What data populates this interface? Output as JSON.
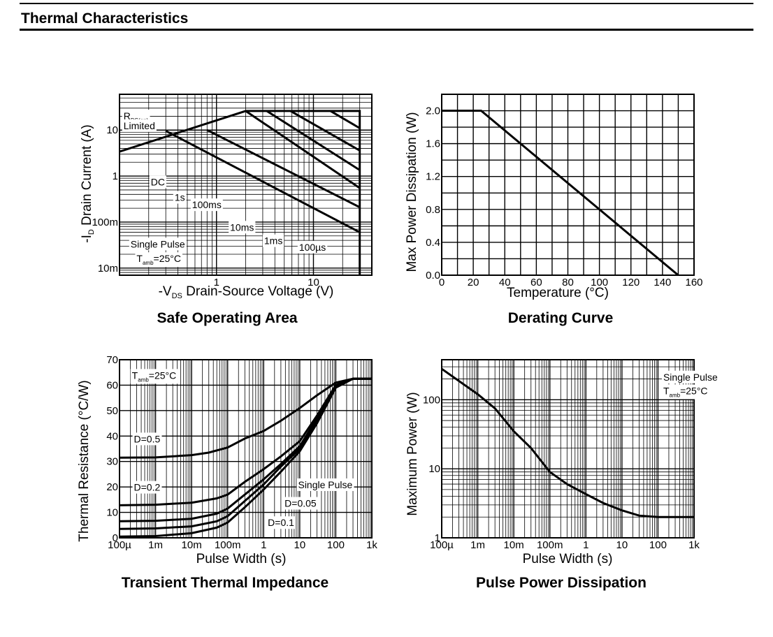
{
  "section_title": "Thermal Characteristics",
  "chart_data": [
    {
      "id": "soa",
      "type": "line",
      "title": "Safe Operating Area",
      "xlabel": "-V",
      "xlabel_sub": "DS",
      "xlabel_rest": "Drain-Source Voltage (V)",
      "ylabel": "-I",
      "ylabel_sub": "D",
      "ylabel_rest": "Drain Current (A)",
      "xscale": "log",
      "yscale": "log",
      "xlim": [
        0.1,
        40
      ],
      "ylim": [
        0.007,
        60
      ],
      "grid": true,
      "xticks": [
        {
          "v": 1,
          "label": "1"
        },
        {
          "v": 10,
          "label": "10"
        }
      ],
      "yticks": [
        {
          "v": 0.01,
          "label": "10m"
        },
        {
          "v": 0.1,
          "label": "100m"
        },
        {
          "v": 1,
          "label": "1"
        },
        {
          "v": 10,
          "label": "10"
        }
      ],
      "series": [
        {
          "name": "",
          "values": [
            [
              0.1,
              3.4
            ],
            [
              2,
              26
            ],
            [
              30,
              26
            ],
            [
              30,
              0.007
            ]
          ]
        },
        {
          "name": "",
          "values": [
            [
              0.3,
              9.6
            ],
            [
              30,
              0.06
            ]
          ]
        },
        {
          "name": "",
          "values": [
            [
              0.8,
              10
            ],
            [
              30,
              0.21
            ]
          ]
        },
        {
          "name": "",
          "values": [
            [
              2,
              26
            ],
            [
              30,
              0.55
            ]
          ]
        },
        {
          "name": "",
          "values": [
            [
              3.3,
              26
            ],
            [
              30,
              1.35
            ]
          ]
        },
        {
          "name": "",
          "values": [
            [
              5.8,
              26
            ],
            [
              30,
              3.6
            ]
          ]
        },
        {
          "name": "",
          "values": [
            [
              15,
              26
            ],
            [
              30,
              11
            ]
          ]
        }
      ],
      "annotations": [
        {
          "text": "R",
          "sub": "DS(on)",
          "x": 0.11,
          "y": 17
        },
        {
          "text": "Limited",
          "x": 0.11,
          "y": 10.5
        },
        {
          "text": "DC",
          "x": 0.21,
          "y": 0.63
        },
        {
          "text": "1s",
          "x": 0.37,
          "y": 0.29
        },
        {
          "text": "100ms",
          "x": 0.56,
          "y": 0.2
        },
        {
          "text": "10ms",
          "x": 1.38,
          "y": 0.065
        },
        {
          "text": "1ms",
          "x": 3.1,
          "y": 0.033
        },
        {
          "text": "100µs",
          "x": 7.1,
          "y": 0.024
        },
        {
          "text": "Single Pulse",
          "x": 0.13,
          "y": 0.028
        },
        {
          "text": "T",
          "sub": "amb",
          "rest": "=25°C",
          "x": 0.15,
          "y": 0.0135
        }
      ]
    },
    {
      "id": "derating",
      "type": "line",
      "title": "Derating Curve",
      "xlabel": "Temperature (°C)",
      "ylabel": "Max Power Dissipation (W)",
      "xlim": [
        0,
        160
      ],
      "ylim": [
        0,
        2.2
      ],
      "grid": true,
      "xticks": [
        {
          "v": 0,
          "label": "0"
        },
        {
          "v": 20,
          "label": "20"
        },
        {
          "v": 40,
          "label": "40"
        },
        {
          "v": 60,
          "label": "60"
        },
        {
          "v": 80,
          "label": "80"
        },
        {
          "v": 100,
          "label": "100"
        },
        {
          "v": 120,
          "label": "120"
        },
        {
          "v": 140,
          "label": "140"
        },
        {
          "v": 160,
          "label": "160"
        }
      ],
      "yticks": [
        {
          "v": 0,
          "label": "0.0"
        },
        {
          "v": 0.4,
          "label": "0.4"
        },
        {
          "v": 0.8,
          "label": "0.8"
        },
        {
          "v": 1.2,
          "label": "1.2"
        },
        {
          "v": 1.6,
          "label": "1.6"
        },
        {
          "v": 2.0,
          "label": "2.0"
        }
      ],
      "series": [
        {
          "name": "",
          "values": [
            [
              0,
              2.0
            ],
            [
              25,
              2.0
            ],
            [
              150,
              0.0
            ]
          ]
        }
      ]
    },
    {
      "id": "zth",
      "type": "line",
      "title": "Transient Thermal Impedance",
      "xlabel": "Pulse Width (s)",
      "ylabel": "Thermal Resistance (°C/W)",
      "xscale": "log",
      "xlim": [
        0.0001,
        1000
      ],
      "ylim": [
        0,
        70
      ],
      "grid": true,
      "xticks": [
        {
          "v": 0.0001,
          "label": "100µ"
        },
        {
          "v": 0.001,
          "label": "1m"
        },
        {
          "v": 0.01,
          "label": "10m"
        },
        {
          "v": 0.1,
          "label": "100m"
        },
        {
          "v": 1,
          "label": "1"
        },
        {
          "v": 10,
          "label": "10"
        },
        {
          "v": 100,
          "label": "100"
        },
        {
          "v": 1000,
          "label": "1k"
        }
      ],
      "yticks": [
        {
          "v": 0,
          "label": "0"
        },
        {
          "v": 10,
          "label": "10"
        },
        {
          "v": 20,
          "label": "20"
        },
        {
          "v": 30,
          "label": "30"
        },
        {
          "v": 40,
          "label": "40"
        },
        {
          "v": 50,
          "label": "50"
        },
        {
          "v": 60,
          "label": "60"
        },
        {
          "v": 70,
          "label": "70"
        }
      ],
      "series": [
        {
          "name": "D=0.5",
          "values": [
            [
              0.0001,
              31.5
            ],
            [
              0.001,
              31.6
            ],
            [
              0.01,
              32.5
            ],
            [
              0.03,
              33.5
            ],
            [
              0.1,
              35.5
            ],
            [
              0.3,
              39
            ],
            [
              1,
              42
            ],
            [
              3,
              46
            ],
            [
              10,
              51
            ],
            [
              30,
              56
            ],
            [
              100,
              61
            ],
            [
              300,
              62.5
            ],
            [
              1000,
              62.5
            ]
          ]
        },
        {
          "name": "D=0.2",
          "values": [
            [
              0.0001,
              12.8
            ],
            [
              0.001,
              13
            ],
            [
              0.01,
              13.8
            ],
            [
              0.05,
              15.5
            ],
            [
              0.1,
              17
            ],
            [
              0.3,
              22
            ],
            [
              1,
              27
            ],
            [
              3,
              32
            ],
            [
              10,
              38
            ],
            [
              30,
              48
            ],
            [
              100,
              60
            ],
            [
              300,
              62.5
            ],
            [
              1000,
              62.5
            ]
          ]
        },
        {
          "name": "D=0.1",
          "values": [
            [
              0.0001,
              6.5
            ],
            [
              0.001,
              6.7
            ],
            [
              0.01,
              7.5
            ],
            [
              0.05,
              9.5
            ],
            [
              0.1,
              11.5
            ],
            [
              0.3,
              17
            ],
            [
              1,
              23
            ],
            [
              3,
              29
            ],
            [
              10,
              36
            ],
            [
              30,
              47
            ],
            [
              100,
              60
            ],
            [
              300,
              62.5
            ],
            [
              1000,
              62.5
            ]
          ]
        },
        {
          "name": "D=0.05",
          "values": [
            [
              0.0001,
              3.5
            ],
            [
              0.001,
              3.7
            ],
            [
              0.01,
              4.5
            ],
            [
              0.05,
              6.5
            ],
            [
              0.1,
              8.5
            ],
            [
              0.3,
              14.5
            ],
            [
              1,
              21
            ],
            [
              3,
              28
            ],
            [
              10,
              35
            ],
            [
              30,
              46
            ],
            [
              100,
              59.5
            ],
            [
              300,
              62.5
            ],
            [
              1000,
              62.5
            ]
          ]
        },
        {
          "name": "Single Pulse",
          "values": [
            [
              0.0001,
              0.5
            ],
            [
              0.001,
              0.7
            ],
            [
              0.01,
              1.8
            ],
            [
              0.05,
              4
            ],
            [
              0.1,
              6
            ],
            [
              0.3,
              12
            ],
            [
              1,
              19
            ],
            [
              3,
              26
            ],
            [
              10,
              34
            ],
            [
              30,
              45
            ],
            [
              100,
              59
            ],
            [
              300,
              62.5
            ],
            [
              1000,
              62.5
            ]
          ]
        }
      ],
      "annotations": [
        {
          "text": "T",
          "sub": "amb",
          "rest": "=25°C",
          "x": 0.00022,
          "y": 62.5
        },
        {
          "text": "D=0.5",
          "x": 0.00025,
          "y": 37.5
        },
        {
          "text": "D=0.2",
          "x": 0.00025,
          "y": 18.5
        },
        {
          "text": "Single Pulse",
          "x": 9,
          "y": 19.5
        },
        {
          "text": "D=0.05",
          "x": 3.8,
          "y": 12.2
        },
        {
          "text": "D=0.1",
          "x": 1.3,
          "y": 4.6
        }
      ]
    },
    {
      "id": "ppd",
      "type": "line",
      "title": "Pulse Power Dissipation",
      "xlabel": "Pulse Width (s)",
      "ylabel": "Maximum Power (W)",
      "xscale": "log",
      "yscale": "log",
      "xlim": [
        0.0001,
        1000
      ],
      "ylim": [
        1,
        380
      ],
      "grid": true,
      "xticks": [
        {
          "v": 0.0001,
          "label": "100µ"
        },
        {
          "v": 0.001,
          "label": "1m"
        },
        {
          "v": 0.01,
          "label": "10m"
        },
        {
          "v": 0.1,
          "label": "100m"
        },
        {
          "v": 1,
          "label": "1"
        },
        {
          "v": 10,
          "label": "10"
        },
        {
          "v": 100,
          "label": "100"
        },
        {
          "v": 1000,
          "label": "1k"
        }
      ],
      "yticks": [
        {
          "v": 1,
          "label": "1"
        },
        {
          "v": 10,
          "label": "10"
        },
        {
          "v": 100,
          "label": "100"
        }
      ],
      "series": [
        {
          "name": "",
          "values": [
            [
              0.0001,
              280
            ],
            [
              0.001,
              120
            ],
            [
              0.003,
              75
            ],
            [
              0.01,
              35
            ],
            [
              0.03,
              20
            ],
            [
              0.1,
              9
            ],
            [
              0.3,
              6
            ],
            [
              1,
              4.3
            ],
            [
              3,
              3.2
            ],
            [
              10,
              2.5
            ],
            [
              30,
              2.1
            ],
            [
              100,
              2
            ],
            [
              1000,
              2
            ]
          ]
        }
      ],
      "annotations": [
        {
          "text": "Single Pulse",
          "x": 140,
          "y": 190
        },
        {
          "text": "T",
          "sub": "amb",
          "rest": "=25°C",
          "x": 140,
          "y": 120
        }
      ]
    }
  ]
}
